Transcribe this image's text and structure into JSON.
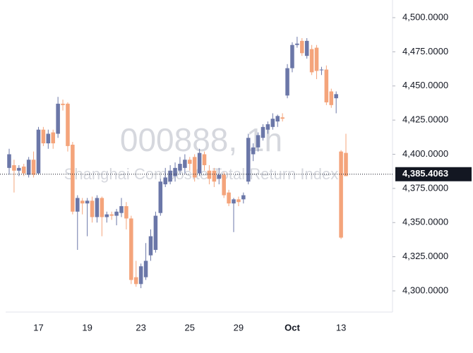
{
  "chart_data": {
    "type": "candlestick",
    "watermark_title": "000888, 1h",
    "watermark_subtitle": "Shanghai Composite Total Return Index",
    "up_color": "#6b77a8",
    "down_color": "#f4a47b",
    "categories": [
      null,
      null,
      null,
      null,
      null,
      null,
      "17",
      null,
      null,
      null,
      null,
      null,
      null,
      null,
      null,
      null,
      "19",
      null,
      null,
      null,
      null,
      null,
      null,
      null,
      null,
      null,
      null,
      "23",
      null,
      null,
      null,
      null,
      null,
      null,
      null,
      null,
      null,
      "25",
      null,
      null,
      null,
      null,
      null,
      null,
      null,
      null,
      null,
      "29",
      null,
      null,
      null,
      null,
      null,
      null,
      null,
      null,
      null,
      null,
      "Oct",
      null,
      null,
      null,
      null,
      null,
      null,
      null,
      null,
      null,
      "13",
      null
    ],
    "bold_categories": [
      "Oct"
    ],
    "open": [
      4390,
      4392,
      4388,
      4391,
      4385,
      4396,
      4386,
      4418,
      4408,
      4416,
      4415,
      4437,
      4437,
      4407,
      4358,
      4366,
      4364,
      4366,
      4354,
      4368,
      4354,
      4356,
      4355,
      4357,
      4362,
      4353,
      4310,
      4305,
      4310,
      4326,
      4330,
      4357,
      4378,
      4380,
      4384,
      4388,
      4390,
      4396,
      4398,
      4386,
      4400,
      4388,
      4388,
      4382,
      4385,
      4372,
      4364,
      4367,
      4367,
      4380,
      4400,
      4405,
      4412,
      4418,
      4420,
      4424,
      4427,
      4443,
      4463,
      4480,
      4483,
      4472,
      4477,
      4478,
      4462,
      4462,
      4446,
      4441,
      4402,
      4401
    ],
    "high": [
      4404,
      4396,
      4392,
      4393,
      4398,
      4402,
      4420,
      4420,
      4418,
      4418,
      4442,
      4440,
      4438,
      4409,
      4370,
      4368,
      4368,
      4369,
      4370,
      4369,
      4358,
      4358,
      4360,
      4368,
      4365,
      4355,
      4322,
      4320,
      4335,
      4345,
      4358,
      4382,
      4390,
      4392,
      4394,
      4398,
      4400,
      4398,
      4400,
      4404,
      4402,
      4392,
      4390,
      4390,
      4387,
      4374,
      4368,
      4369,
      4372,
      4415,
      4408,
      4416,
      4422,
      4424,
      4430,
      4429,
      4430,
      4466,
      4482,
      4486,
      4485,
      4485,
      4480,
      4480,
      4464,
      4465,
      4448,
      4446,
      4403,
      4415
    ],
    "low": [
      4385,
      4372,
      4384,
      4384,
      4383,
      4383,
      4385,
      4406,
      4404,
      4404,
      4412,
      4432,
      4402,
      4356,
      4330,
      4356,
      4340,
      4350,
      4350,
      4340,
      4350,
      4352,
      4348,
      4354,
      4345,
      4305,
      4303,
      4302,
      4308,
      4322,
      4328,
      4355,
      4376,
      4378,
      4380,
      4385,
      4386,
      4388,
      4380,
      4384,
      4388,
      4378,
      4376,
      4378,
      4368,
      4362,
      4343,
      4362,
      4364,
      4378,
      4395,
      4402,
      4410,
      4415,
      4418,
      4420,
      4424,
      4441,
      4460,
      4478,
      4472,
      4470,
      4458,
      4455,
      4458,
      4436,
      4434,
      4430,
      4338,
      4384
    ],
    "close": [
      4400,
      4388,
      4390,
      4386,
      4396,
      4385,
      4418,
      4408,
      4415,
      4408,
      4437,
      4436,
      4406,
      4358,
      4368,
      4364,
      4366,
      4354,
      4368,
      4354,
      4356,
      4355,
      4358,
      4362,
      4353,
      4308,
      4305,
      4318,
      4322,
      4340,
      4355,
      4380,
      4383,
      4388,
      4390,
      4393,
      4396,
      4393,
      4383,
      4401,
      4392,
      4382,
      4380,
      4385,
      4370,
      4364,
      4367,
      4365,
      4370,
      4412,
      4405,
      4414,
      4420,
      4422,
      4426,
      4428,
      4426,
      4463,
      4480,
      4481,
      4474,
      4483,
      4460,
      4461,
      4462,
      4438,
      4436,
      4444,
      4339,
      4384
    ],
    "ylim": [
      4290,
      4510
    ],
    "yticks": [
      {
        "value": 4300,
        "label": "4,300.0000"
      },
      {
        "value": 4325,
        "label": "4,325.0000"
      },
      {
        "value": 4350,
        "label": "4,350.0000"
      },
      {
        "value": 4375,
        "label": "4,375.0000"
      },
      {
        "value": 4400,
        "label": "4,400.0000"
      },
      {
        "value": 4425,
        "label": "4,425.0000"
      },
      {
        "value": 4450,
        "label": "4,450.0000"
      },
      {
        "value": 4475,
        "label": "4,475.0000"
      },
      {
        "value": 4500,
        "label": "4,500.0000"
      }
    ],
    "crosshair": {
      "value": 4385.4063,
      "label": "4,385.4063"
    }
  }
}
